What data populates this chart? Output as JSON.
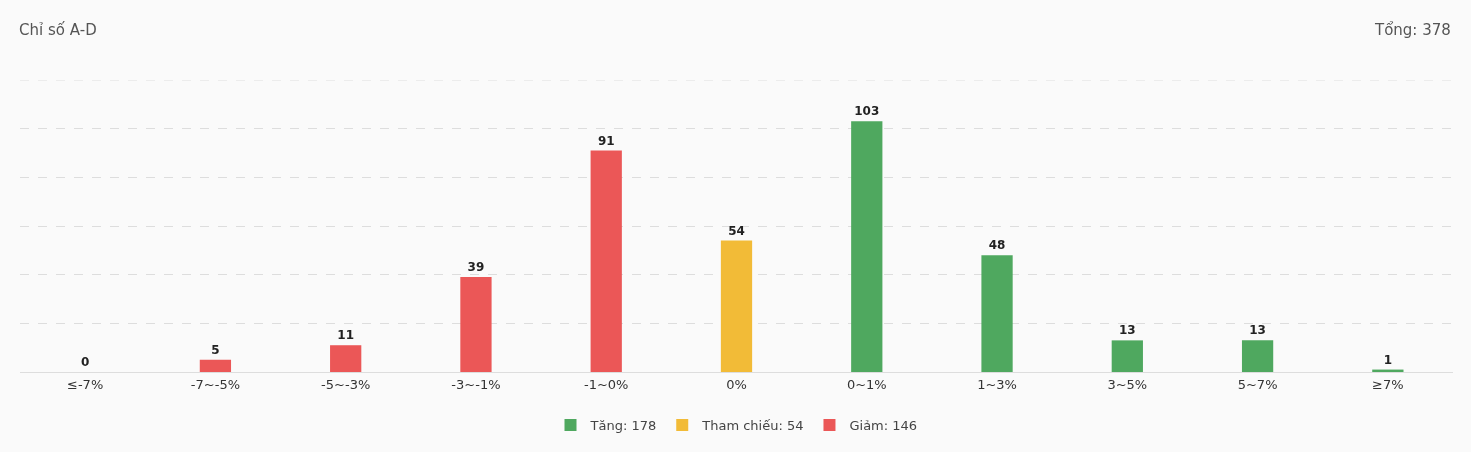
{
  "chart_data": {
    "type": "bar",
    "title": "Chỉ số A-D",
    "annotations": [
      "Tổng: 378"
    ],
    "categories": [
      "≤-7%",
      "-7~-5%",
      "-5~-3%",
      "-3~-1%",
      "-1~0%",
      "0%",
      "0~1%",
      "1~3%",
      "3~5%",
      "5~7%",
      "≥7%"
    ],
    "series": [
      {
        "name": "Tăng: 178",
        "color": "#4fa85f",
        "values": [
          null,
          null,
          null,
          null,
          null,
          null,
          103,
          48,
          13,
          13,
          1
        ]
      },
      {
        "name": "Tham chiếu: 54",
        "color": "#f2bb37",
        "values": [
          null,
          null,
          null,
          null,
          null,
          54,
          null,
          null,
          null,
          null,
          null
        ]
      },
      {
        "name": "Giảm: 146",
        "color": "#eb5757",
        "values": [
          0,
          5,
          11,
          39,
          91,
          null,
          null,
          null,
          null,
          null,
          null
        ]
      }
    ],
    "ylim": [
      0,
      120
    ],
    "yticks": [
      {
        "value": 0,
        "label": null
      },
      {
        "value": 20,
        "label": null
      },
      {
        "value": 40,
        "label": null
      },
      {
        "value": 60,
        "label": null
      },
      {
        "value": 80,
        "label": null
      },
      {
        "value": 100,
        "label": null
      },
      {
        "value": 120,
        "label": null
      }
    ],
    "tick_labels": "x",
    "grid": "y",
    "data_labels": true,
    "legend": "bottom"
  }
}
